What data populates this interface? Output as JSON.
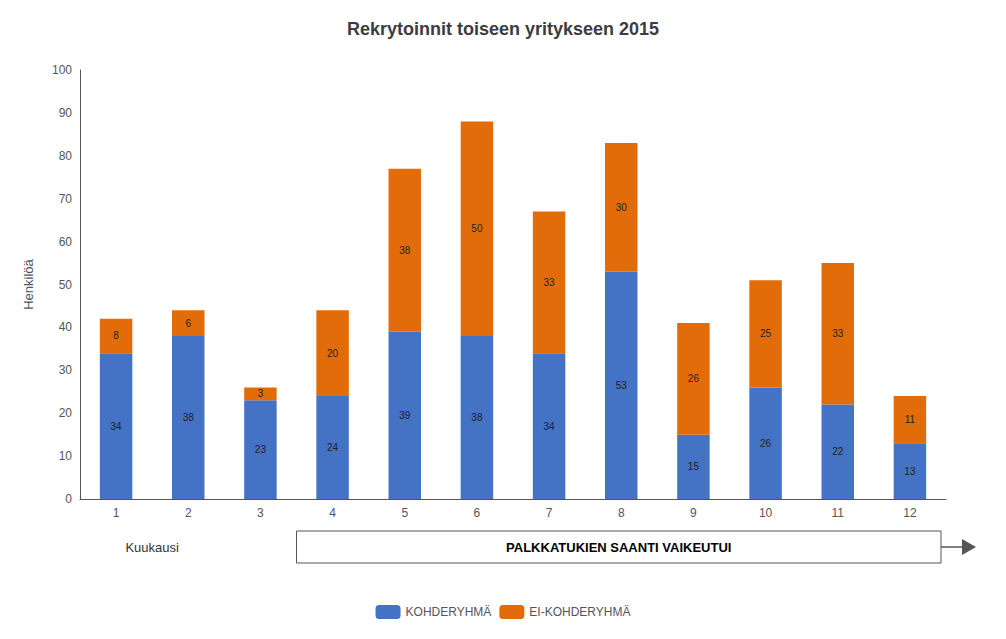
{
  "chart_data": {
    "type": "bar",
    "title": "Rekrytoinnit toiseen yritykseen 2015",
    "xlabel": "Kuukausi",
    "ylabel": "Henkilöä",
    "categories": [
      1,
      2,
      3,
      4,
      5,
      6,
      7,
      8,
      9,
      10,
      11,
      12
    ],
    "series": [
      {
        "name": "KOHDERYHMÄ",
        "color": "#4472C4",
        "values": [
          34,
          38,
          23,
          24,
          39,
          38,
          34,
          53,
          15,
          26,
          22,
          13
        ]
      },
      {
        "name": "EI-KOHDERYHMÄ",
        "color": "#E36C0A",
        "values": [
          8,
          6,
          3,
          20,
          38,
          50,
          33,
          30,
          26,
          25,
          33,
          11
        ]
      }
    ],
    "stacked": true,
    "data_labels": true,
    "grid": false,
    "legend": "bottom",
    "annotation": "PALKKATUKIEN SAANTI VAIKEUTUI",
    "ylim": [
      0,
      100
    ],
    "yticks": [
      0,
      10,
      20,
      30,
      40,
      50,
      60,
      70,
      80,
      90,
      100
    ]
  }
}
